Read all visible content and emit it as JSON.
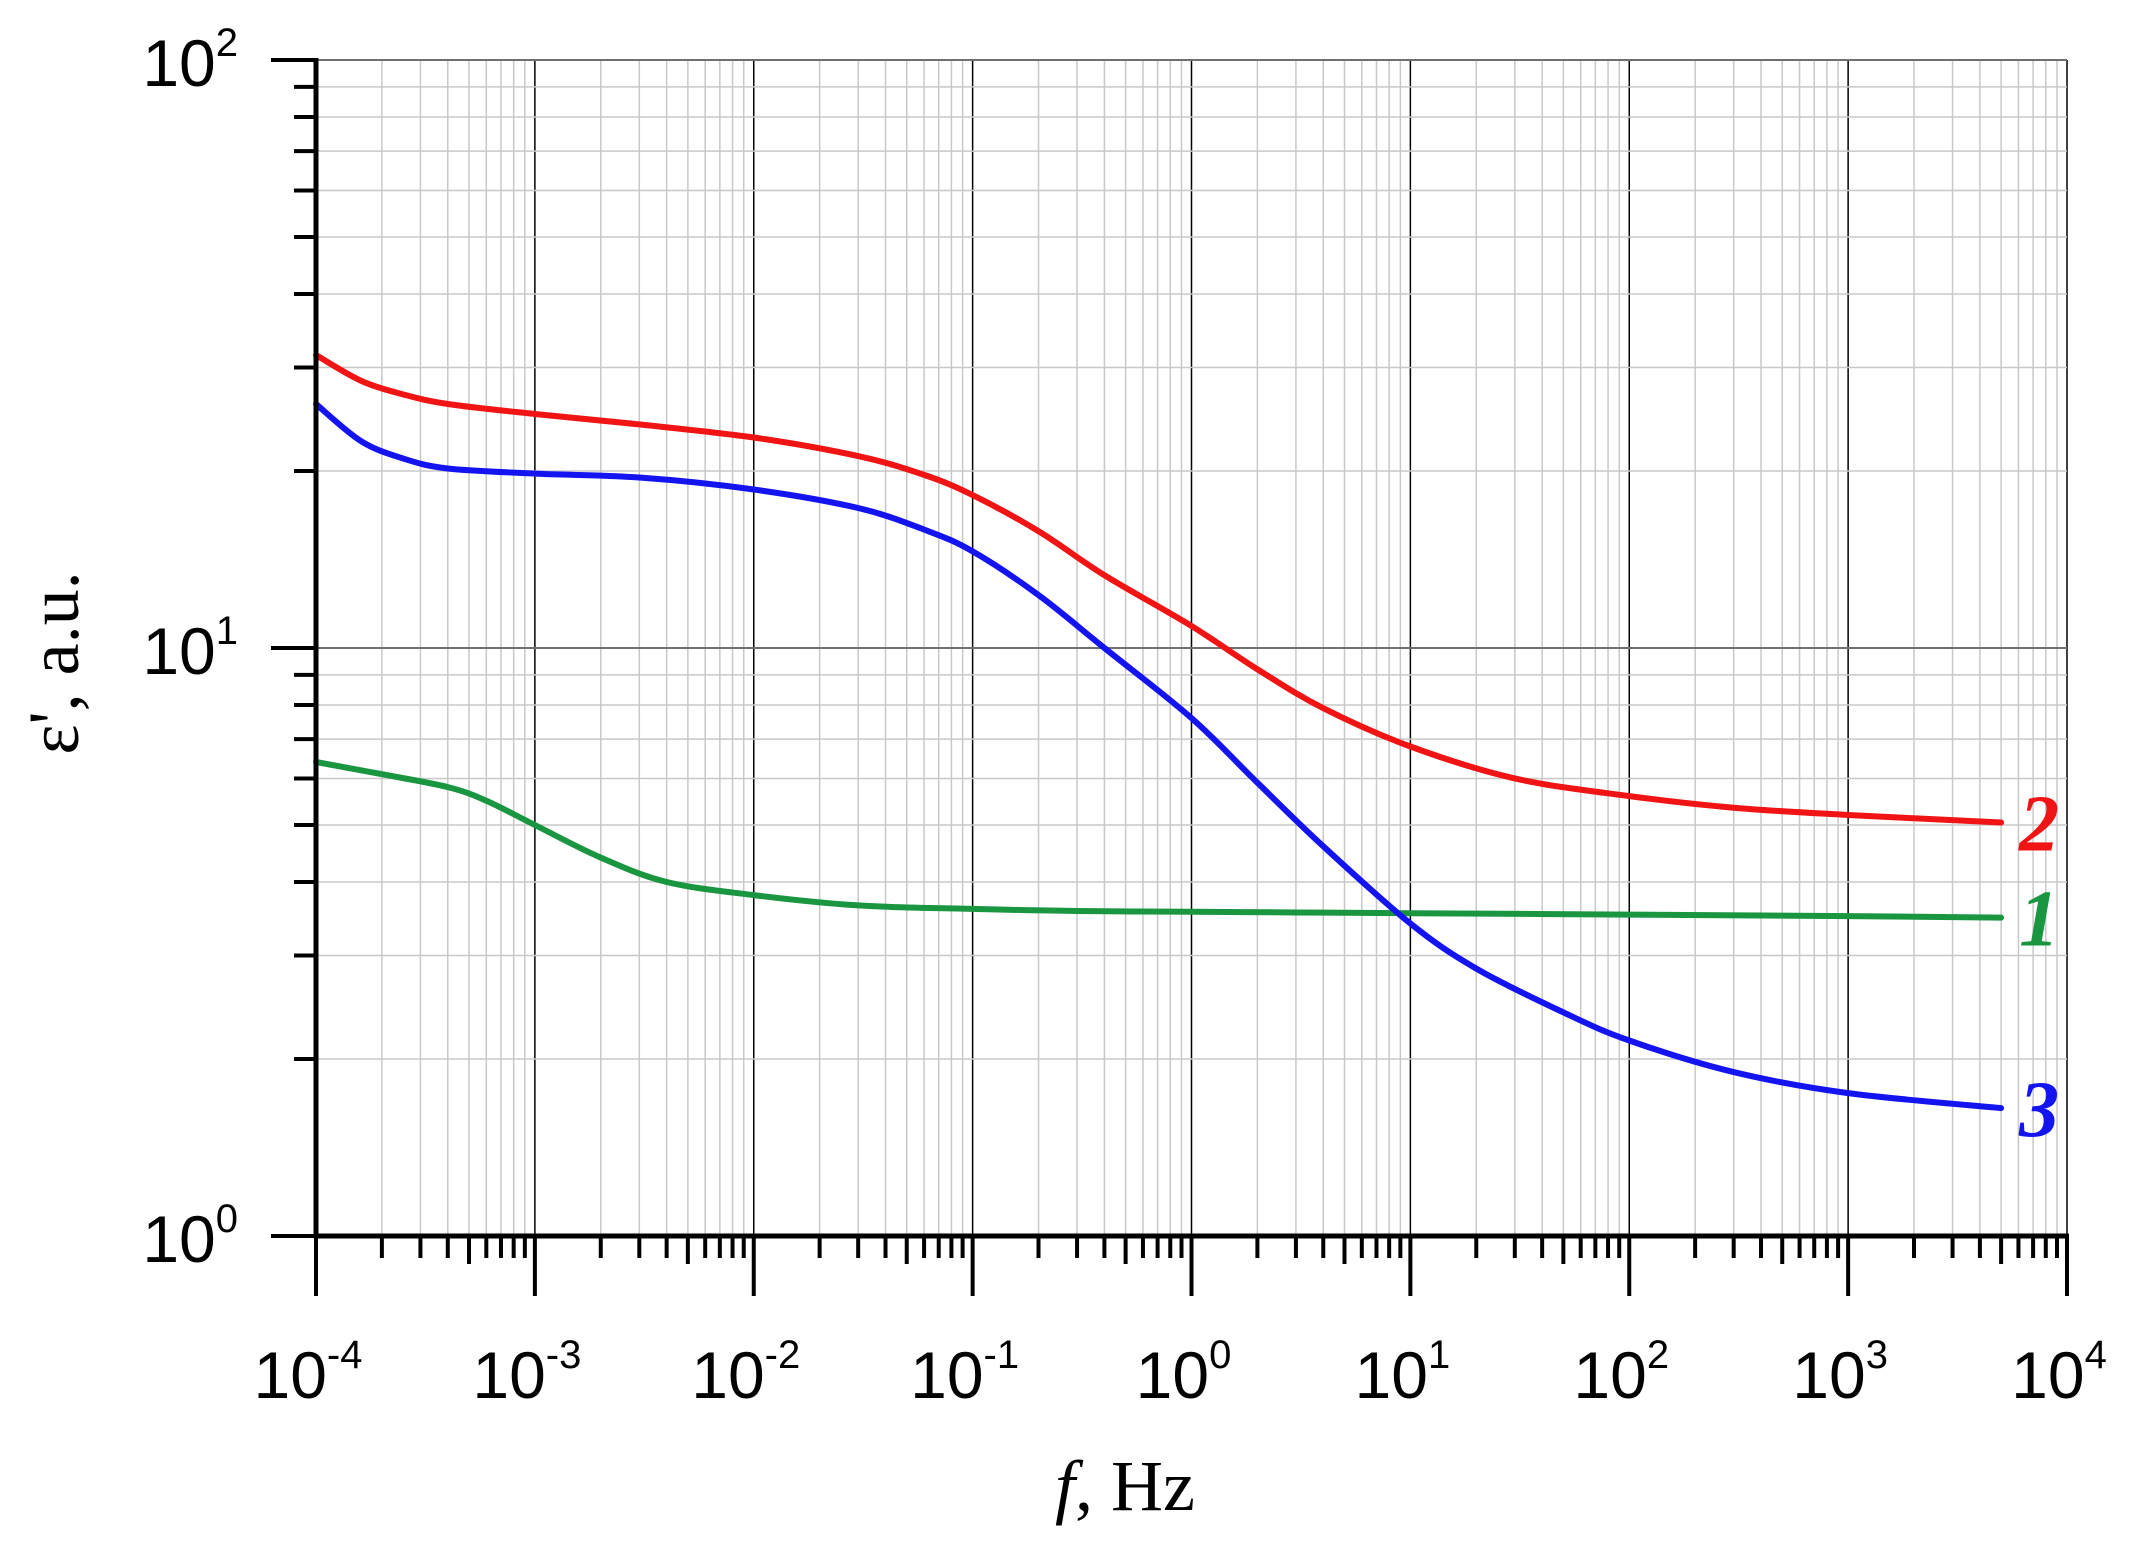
{
  "chart_data": {
    "type": "line",
    "x_scale": "log",
    "y_scale": "log",
    "xlim": [
      0.0001,
      10000
    ],
    "ylim": [
      1,
      100
    ],
    "grid": true,
    "x_axis": {
      "label_var": "f",
      "label_rest": ", Hz",
      "ticks": [
        {
          "base": "10",
          "exp": "-4",
          "value": 0.0001
        },
        {
          "base": "10",
          "exp": "-3",
          "value": 0.001
        },
        {
          "base": "10",
          "exp": "-2",
          "value": 0.01
        },
        {
          "base": "10",
          "exp": "-1",
          "value": 0.1
        },
        {
          "base": "10",
          "exp": "0",
          "value": 1
        },
        {
          "base": "10",
          "exp": "1",
          "value": 10
        },
        {
          "base": "10",
          "exp": "2",
          "value": 100
        },
        {
          "base": "10",
          "exp": "3",
          "value": 1000
        },
        {
          "base": "10",
          "exp": "4",
          "value": 10000
        }
      ]
    },
    "y_axis": {
      "label": "ε', a.u.",
      "ticks": [
        {
          "base": "10",
          "exp": "0",
          "value": 1
        },
        {
          "base": "10",
          "exp": "1",
          "value": 10
        },
        {
          "base": "10",
          "exp": "2",
          "value": 100
        }
      ]
    },
    "series": [
      {
        "name": "1",
        "color": "#1a9641",
        "x": [
          0.0001,
          0.0002,
          0.0004,
          0.0006,
          0.001,
          0.002,
          0.004,
          0.01,
          0.03,
          0.1,
          0.3,
          1,
          3,
          10,
          100,
          1000,
          5000
        ],
        "y": [
          6.4,
          6.1,
          5.8,
          5.5,
          5.0,
          4.4,
          4.0,
          3.8,
          3.65,
          3.6,
          3.57,
          3.56,
          3.55,
          3.54,
          3.52,
          3.5,
          3.48
        ]
      },
      {
        "name": "2",
        "color": "#f01414",
        "x": [
          0.0001,
          0.00016,
          0.00025,
          0.0004,
          0.001,
          0.003,
          0.01,
          0.03,
          0.06,
          0.1,
          0.2,
          0.4,
          1,
          2,
          4,
          10,
          30,
          100,
          300,
          1000,
          5000
        ],
        "y": [
          31.5,
          28.5,
          27.0,
          26.0,
          25.0,
          24.0,
          22.8,
          21.2,
          19.7,
          18.2,
          15.8,
          13.3,
          10.9,
          9.2,
          7.9,
          6.8,
          6.0,
          5.6,
          5.35,
          5.2,
          5.05
        ]
      },
      {
        "name": "3",
        "color": "#1414f0",
        "x": [
          0.0001,
          0.00016,
          0.00025,
          0.0004,
          0.001,
          0.003,
          0.01,
          0.03,
          0.06,
          0.1,
          0.2,
          0.4,
          1,
          2,
          4,
          10,
          20,
          50,
          100,
          300,
          1000,
          5000
        ],
        "y": [
          26.0,
          22.5,
          21.0,
          20.2,
          19.8,
          19.5,
          18.6,
          17.3,
          15.9,
          14.6,
          12.3,
          10.0,
          7.6,
          5.9,
          4.6,
          3.4,
          2.85,
          2.4,
          2.15,
          1.9,
          1.75,
          1.65
        ]
      }
    ]
  }
}
